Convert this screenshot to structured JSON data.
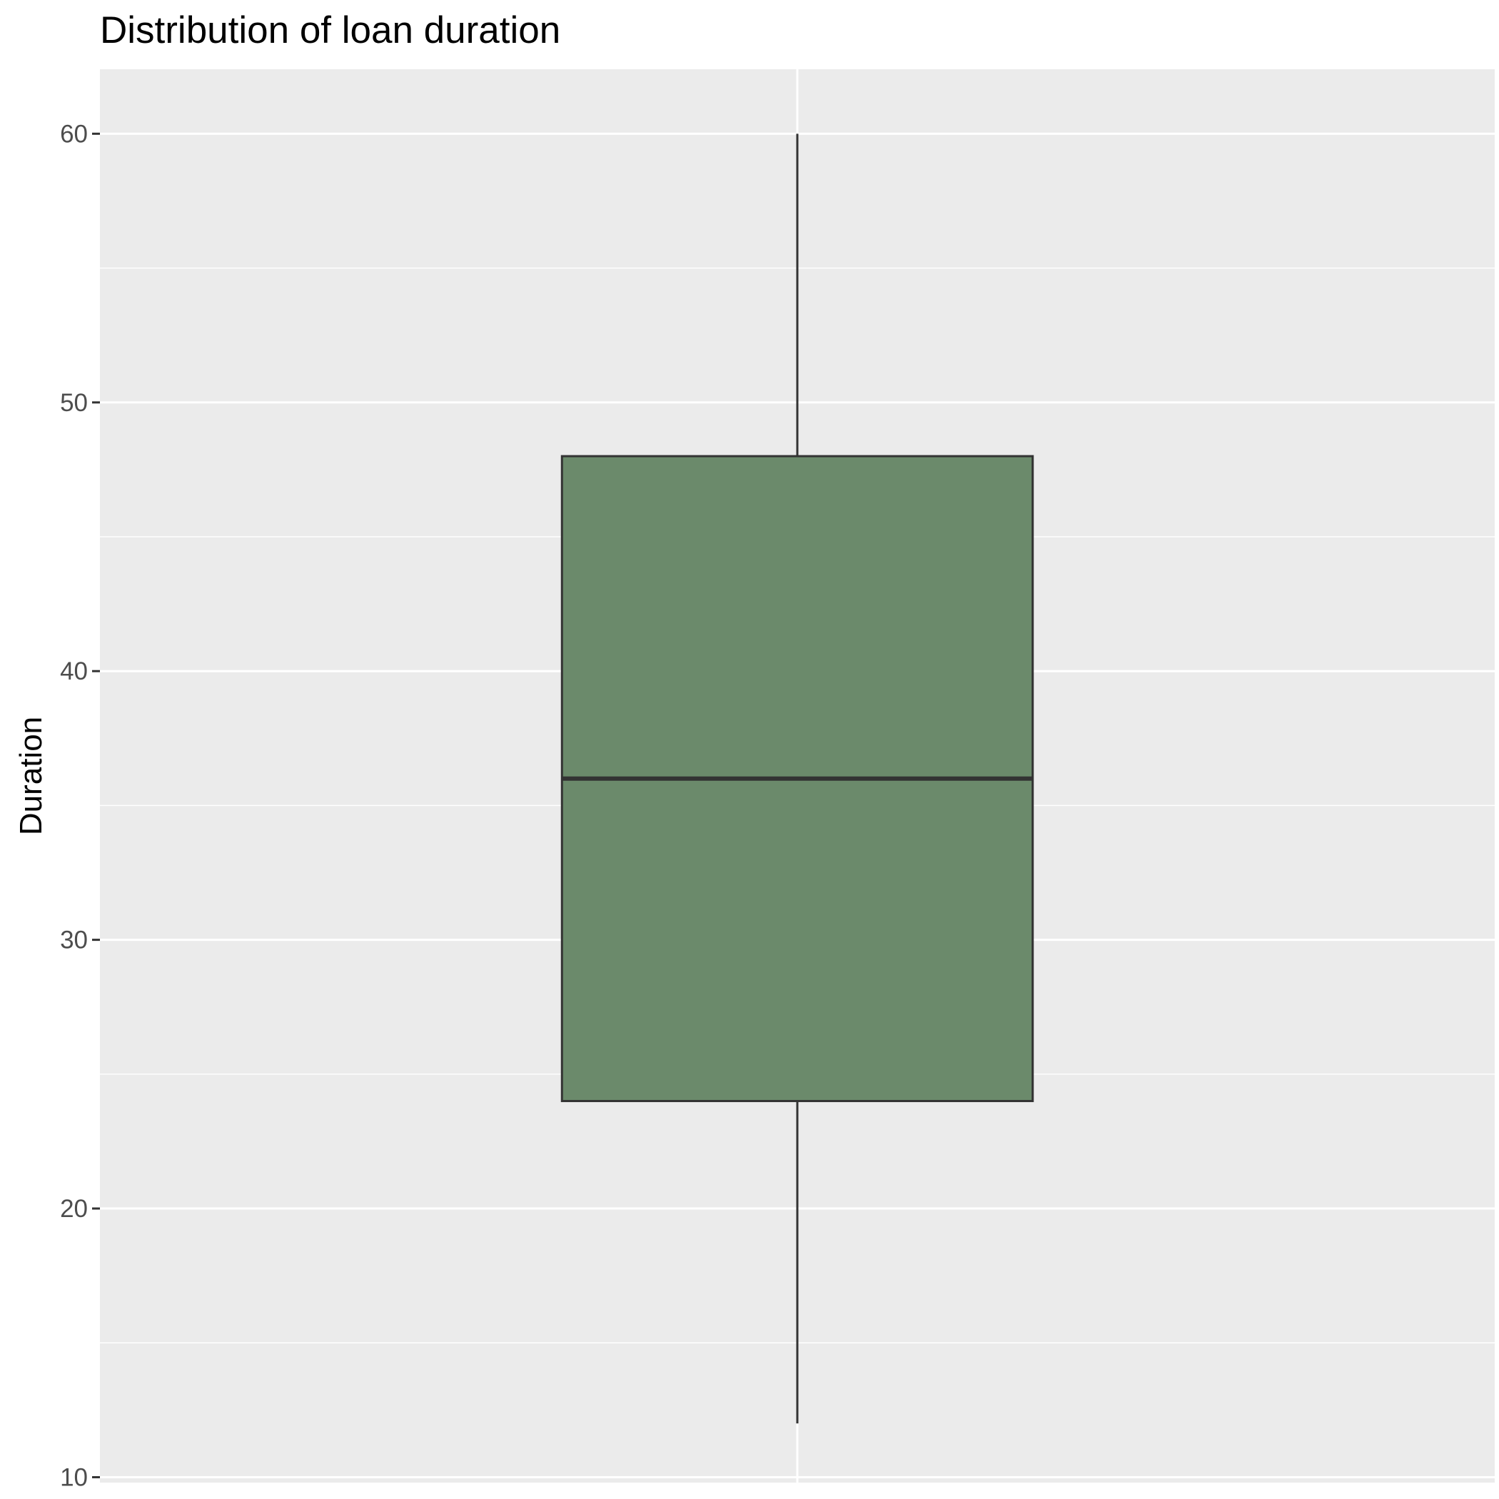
{
  "chart_data": {
    "type": "box",
    "title": "Distribution of loan duration",
    "xlabel": "",
    "ylabel": "Duration",
    "ylim": [
      9.8,
      62.4
    ],
    "y_ticks": [
      10,
      20,
      30,
      40,
      50,
      60
    ],
    "y_minor_ticks": [
      15,
      25,
      35,
      45,
      55
    ],
    "grid": true,
    "series": [
      {
        "whisker_low": 12,
        "q1": 24,
        "median": 36,
        "q3": 48,
        "whisker_high": 60
      }
    ],
    "colors": {
      "panel_background": "#ebebeb",
      "grid": "#ffffff",
      "box_fill": "#6b8a6b",
      "box_outline": "#333333"
    }
  }
}
